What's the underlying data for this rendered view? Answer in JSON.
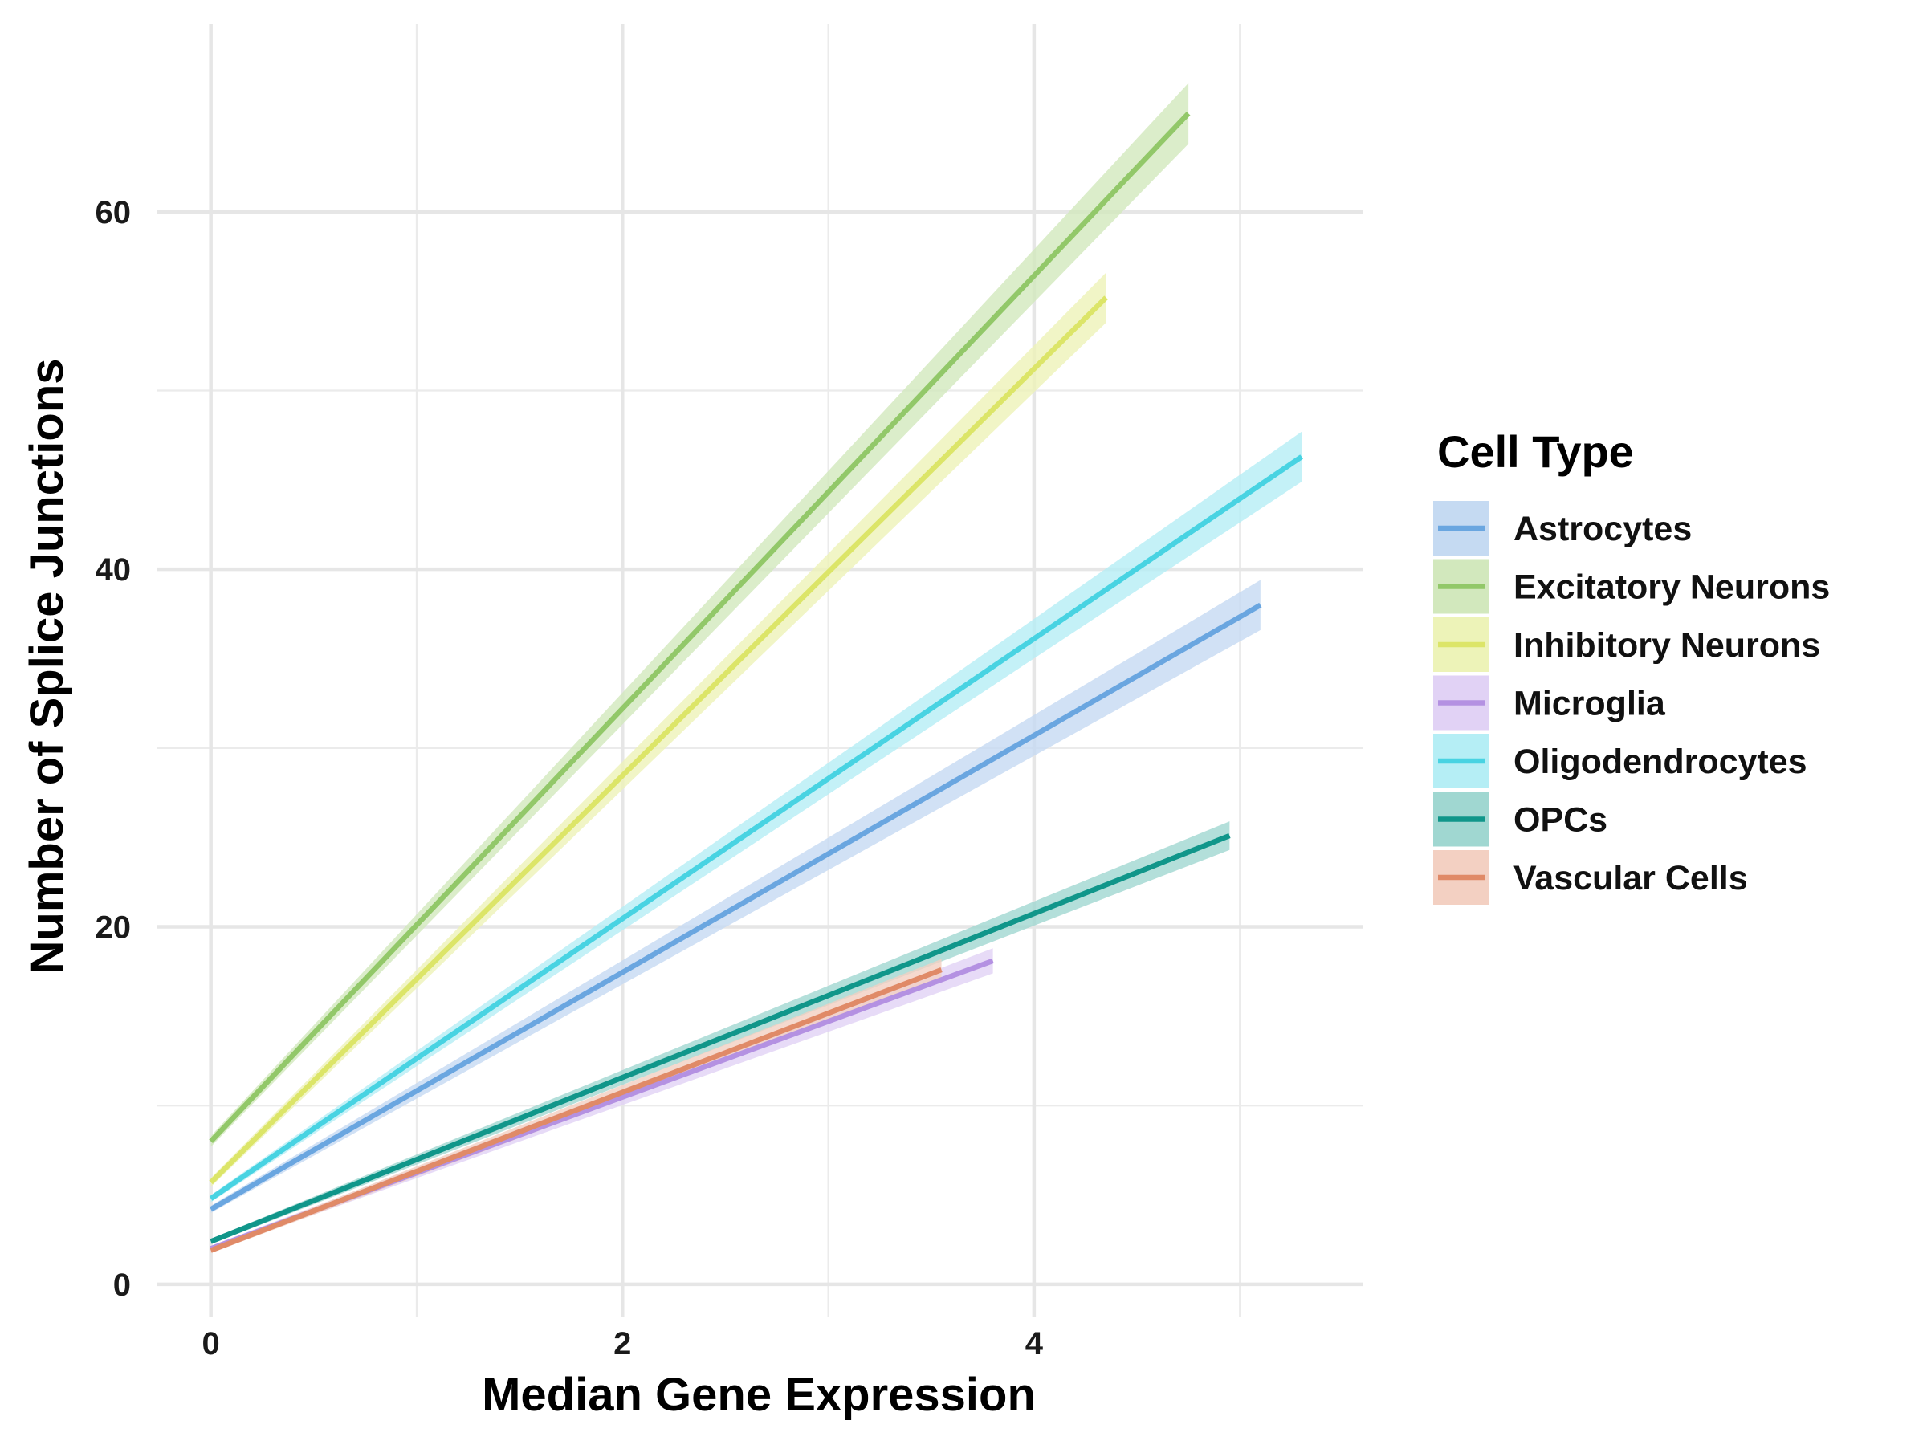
{
  "chart_data": {
    "type": "line",
    "title": "",
    "xlabel": "Median Gene Expression",
    "ylabel": "Number of Splice Junctions",
    "xlim": [
      -0.26,
      5.6
    ],
    "ylim": [
      -1.8,
      70.5
    ],
    "x_ticks": [
      0,
      2,
      4
    ],
    "x_tick_labels": [
      "0",
      "2",
      "4"
    ],
    "x_minor_grid": [
      1,
      3,
      5
    ],
    "y_ticks": [
      0,
      20,
      40,
      60
    ],
    "y_tick_labels": [
      "0",
      "20",
      "40",
      "60"
    ],
    "y_minor_grid": [
      10,
      30,
      50
    ],
    "grid": true,
    "legend": {
      "title": "Cell Type",
      "position": "right"
    },
    "series": [
      {
        "name": "Astrocytes",
        "color": "#6AA6E0",
        "fill": "#C5DAF2",
        "x": [
          0,
          5.1
        ],
        "y": [
          4.2,
          38.0
        ],
        "ci": [
          0.2,
          1.4
        ]
      },
      {
        "name": "Excitatory Neurons",
        "color": "#92C869",
        "fill": "#D2E8BD",
        "x": [
          0,
          4.75
        ],
        "y": [
          8.0,
          65.5
        ],
        "ci": [
          0.3,
          1.7
        ]
      },
      {
        "name": "Inhibitory Neurons",
        "color": "#DCE568",
        "fill": "#EDF3B8",
        "x": [
          0,
          4.35
        ],
        "y": [
          5.7,
          55.2
        ],
        "ci": [
          0.25,
          1.4
        ]
      },
      {
        "name": "Microglia",
        "color": "#B491E2",
        "fill": "#E1D2F5",
        "x": [
          0,
          3.8
        ],
        "y": [
          2.0,
          18.1
        ],
        "ci": [
          0.15,
          0.7
        ]
      },
      {
        "name": "Oligodendrocytes",
        "color": "#48D3E2",
        "fill": "#B5EEF5",
        "x": [
          0,
          5.3
        ],
        "y": [
          4.8,
          46.3
        ],
        "ci": [
          0.2,
          1.4
        ]
      },
      {
        "name": "OPCs",
        "color": "#10968A",
        "fill": "#A0D7D1",
        "x": [
          0,
          4.95
        ],
        "y": [
          2.4,
          25.1
        ],
        "ci": [
          0.15,
          0.8
        ]
      },
      {
        "name": "Vascular Cells",
        "color": "#E08A67",
        "fill": "#F3D0C2",
        "x": [
          0,
          3.55
        ],
        "y": [
          1.9,
          17.6
        ],
        "ci": [
          0.15,
          0.6
        ]
      }
    ]
  }
}
